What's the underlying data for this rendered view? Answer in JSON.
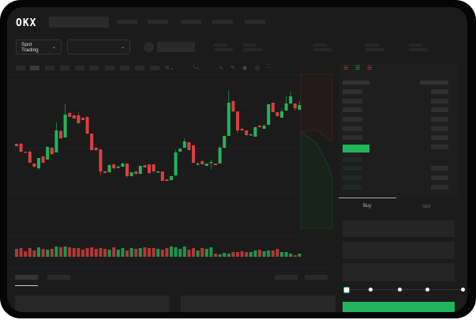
{
  "header": {
    "logo": "OKX",
    "nav_items": [
      "",
      "",
      "",
      "",
      ""
    ]
  },
  "toolbar": {
    "market_dropdown": "Spot Trading",
    "pair_dropdown": ""
  },
  "order_form": {
    "tabs": [
      {
        "label": "Buy",
        "active": true
      },
      {
        "label": "Sell",
        "active": false
      }
    ],
    "slider_steps": 5,
    "slider_value_percent": 0
  },
  "colors": {
    "up": "#22b45a",
    "down": "#d9403f",
    "background": "#1b1b1b",
    "frame": "#050505"
  },
  "icons": [
    "chevron-down-icon",
    "candles-icon",
    "indicator-icon",
    "line-icon",
    "pencil-icon",
    "camera-icon",
    "settings-icon",
    "fullscreen-icon",
    "book-both-icon",
    "book-buy-icon",
    "book-sell-icon"
  ],
  "chart_data": {
    "type": "candlestick",
    "note_units": "relative price (no axis printed)",
    "candles": [
      [
        118,
        115,
        118,
        115
      ],
      [
        118,
        108,
        119,
        107
      ],
      [
        108,
        107,
        108,
        107
      ],
      [
        108,
        94,
        110,
        94
      ],
      [
        93,
        89,
        93,
        88
      ],
      [
        87,
        100,
        100,
        85
      ],
      [
        102,
        94,
        103,
        94
      ],
      [
        98,
        114,
        115,
        98
      ],
      [
        113,
        105,
        114,
        104
      ],
      [
        107,
        135,
        145,
        107
      ],
      [
        134,
        125,
        136,
        124
      ],
      [
        126,
        155,
        168,
        126
      ],
      [
        157,
        152,
        158,
        152
      ],
      [
        154,
        150,
        155,
        150
      ],
      [
        154,
        144,
        158,
        144
      ],
      [
        151,
        148,
        151,
        148
      ],
      [
        152,
        131,
        153,
        130
      ],
      [
        131,
        110,
        131,
        110
      ],
      [
        113,
        110,
        114,
        109
      ],
      [
        111,
        83,
        111,
        78
      ],
      [
        83,
        81,
        84,
        81
      ],
      [
        82,
        91,
        92,
        82
      ],
      [
        92,
        87,
        93,
        86
      ],
      [
        89,
        89,
        91,
        87
      ],
      [
        89,
        93,
        94,
        89
      ],
      [
        93,
        77,
        93,
        75
      ],
      [
        77,
        82,
        82,
        77
      ],
      [
        83,
        80,
        84,
        79
      ],
      [
        80,
        90,
        91,
        80
      ],
      [
        91,
        88,
        91,
        88
      ],
      [
        92,
        81,
        92,
        80
      ],
      [
        92,
        83,
        92,
        81
      ],
      [
        83,
        83,
        84,
        82
      ],
      [
        83,
        71,
        83,
        71
      ],
      [
        73,
        71,
        73,
        71
      ],
      [
        72,
        77,
        77,
        72
      ],
      [
        78,
        107,
        110,
        77
      ],
      [
        108,
        112,
        112,
        108
      ],
      [
        113,
        121,
        125,
        113
      ],
      [
        120,
        110,
        120,
        110
      ],
      [
        116,
        94,
        117,
        93
      ],
      [
        93,
        93,
        95,
        91
      ],
      [
        96,
        92,
        97,
        92
      ],
      [
        90,
        93,
        93,
        90
      ],
      [
        95,
        95,
        98,
        86
      ],
      [
        93,
        91,
        93,
        91
      ],
      [
        93,
        113,
        115,
        93
      ],
      [
        113,
        128,
        128,
        112
      ],
      [
        128,
        170,
        185,
        128
      ],
      [
        172,
        159,
        173,
        158
      ],
      [
        159,
        135,
        159,
        132
      ],
      [
        137,
        135,
        138,
        134
      ],
      [
        135,
        129,
        135,
        128
      ],
      [
        130,
        130,
        131,
        129
      ],
      [
        127,
        139,
        140,
        127
      ],
      [
        141,
        139,
        142,
        139
      ],
      [
        137,
        141,
        143,
        137
      ],
      [
        142,
        168,
        168,
        142
      ],
      [
        170,
        158,
        170,
        158
      ],
      [
        158,
        153,
        158,
        153
      ],
      [
        151,
        159,
        163,
        151
      ],
      [
        160,
        169,
        178,
        160
      ],
      [
        169,
        178,
        184,
        169
      ],
      [
        169,
        163,
        169,
        160
      ],
      [
        161,
        167,
        172,
        161
      ]
    ],
    "volume": [
      10,
      11,
      7,
      11,
      8,
      12,
      10,
      9,
      10,
      13,
      12,
      13,
      12,
      11,
      11,
      9,
      11,
      12,
      10,
      11,
      10,
      9,
      12,
      9,
      11,
      8,
      11,
      10,
      11,
      12,
      11,
      11,
      10,
      9,
      11,
      13,
      12,
      10,
      13,
      9,
      11,
      8,
      11,
      10,
      12,
      4,
      3,
      5,
      4,
      6,
      6,
      7,
      6,
      6,
      8,
      9,
      7,
      8,
      8,
      10,
      6,
      6,
      4,
      2,
      4
    ],
    "grid": true
  }
}
